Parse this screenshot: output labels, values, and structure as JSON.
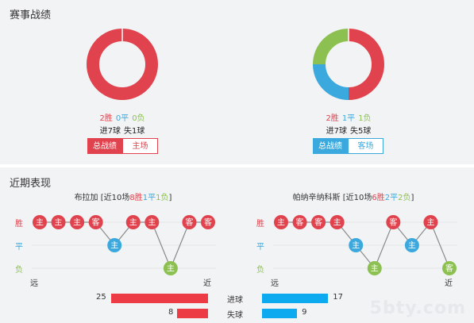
{
  "section_record": {
    "title": "赛事战绩"
  },
  "section_recent": {
    "title": "近期表现"
  },
  "colors": {
    "win": "#e0434d",
    "draw": "#3ba9dd",
    "loss": "#8cc152"
  },
  "left_record": {
    "win_count": 2,
    "draw_count": 0,
    "loss_count": 0,
    "win": "2胜",
    "draw": "0平",
    "loss": "0负",
    "goals_for": "进7球",
    "goals_against": "失1球",
    "tab_total": "总战绩",
    "tab_home": "主场",
    "accent": "#e0434d"
  },
  "right_record": {
    "win_count": 2,
    "draw_count": 1,
    "loss_count": 1,
    "win": "2胜",
    "draw": "1平",
    "loss": "1负",
    "goals_for": "进7球",
    "goals_against": "失5球",
    "tab_total": "总战绩",
    "tab_away": "客场",
    "accent": "#3ba9dd"
  },
  "left_recent": {
    "team": "布拉加",
    "summary_prefix": "[近10场",
    "w": "8胜",
    "d": "1平",
    "l": "1负",
    "summary_suffix": "]",
    "y_win": "胜",
    "y_draw": "平",
    "y_loss": "负",
    "far": "远",
    "near": "近",
    "matches": [
      {
        "venue": "主",
        "result": "W"
      },
      {
        "venue": "主",
        "result": "W"
      },
      {
        "venue": "主",
        "result": "W"
      },
      {
        "venue": "客",
        "result": "W"
      },
      {
        "venue": "主",
        "result": "D"
      },
      {
        "venue": "主",
        "result": "W"
      },
      {
        "venue": "主",
        "result": "W"
      },
      {
        "venue": "主",
        "result": "L"
      },
      {
        "venue": "客",
        "result": "W"
      },
      {
        "venue": "客",
        "result": "W"
      }
    ]
  },
  "right_recent": {
    "team": "帕纳辛纳科斯",
    "summary_prefix": "[近10场",
    "w": "6胜",
    "d": "2平",
    "l": "2负",
    "summary_suffix": "]",
    "y_win": "胜",
    "y_draw": "平",
    "y_loss": "负",
    "far": "远",
    "near": "近",
    "matches": [
      {
        "venue": "主",
        "result": "W"
      },
      {
        "venue": "客",
        "result": "W"
      },
      {
        "venue": "客",
        "result": "W"
      },
      {
        "venue": "主",
        "result": "W"
      },
      {
        "venue": "主",
        "result": "D"
      },
      {
        "venue": "主",
        "result": "L"
      },
      {
        "venue": "客",
        "result": "W"
      },
      {
        "venue": "主",
        "result": "D"
      },
      {
        "venue": "主",
        "result": "W"
      },
      {
        "venue": "客",
        "result": "L"
      }
    ]
  },
  "goals_compare": {
    "for_label": "进球",
    "against_label": "失球",
    "left_for": 25,
    "left_against": 8,
    "right_for": 17,
    "right_against": 9,
    "left_color": "#ec3b45",
    "right_color": "#0eaaf0"
  },
  "watermark": "5bty.com"
}
